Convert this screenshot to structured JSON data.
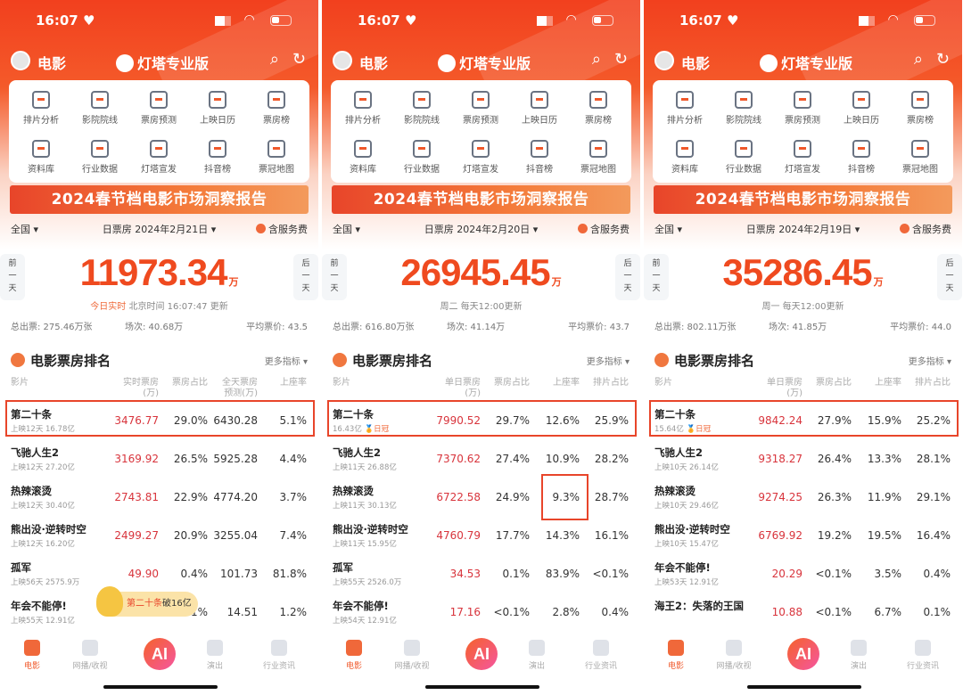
{
  "colors": {
    "accent": "#ef4a1f",
    "value_red": "#d8343c",
    "highlight": "#e8452a"
  },
  "common": {
    "time": "16:07",
    "header_title": "电影",
    "app_name": "灯塔专业版",
    "menu": [
      "排片分析",
      "影院院线",
      "票房预测",
      "上映日历",
      "票房榜",
      "资料库",
      "行业数据",
      "灯塔宣发",
      "抖音榜",
      "票冠地图"
    ],
    "banner": "2024春节档电影市场洞察报告",
    "region": "全国 ▾",
    "service_fee": "含服务费",
    "prev": [
      "前",
      "一",
      "天"
    ],
    "next": [
      "后",
      "一",
      "天"
    ],
    "unit": "万",
    "section_title": "电影票房排名",
    "more": "更多指标 ▾",
    "tabs": [
      "电影",
      "网播/收视",
      "演出",
      "行业资讯"
    ],
    "ai": "AI"
  },
  "phones": [
    {
      "date": "日票房 2024年2月21日 ▾",
      "total": "11973.34",
      "live": "今日实时",
      "subtext": "北京时间 16:07:47 更新",
      "stats": [
        "总出票: 275.46万张",
        "场次: 40.68万",
        "平均票价: 43.5"
      ],
      "columns": [
        "影片",
        "实时票房\n(万)",
        "票房占比",
        "全天票房\n预测(万)",
        "上座率"
      ],
      "rows": [
        {
          "name": "第二十条",
          "sub": "上映12天 16.78亿",
          "values": [
            "3476.77",
            "29.0%",
            "6430.28",
            "5.1%"
          ]
        },
        {
          "name": "飞驰人生2",
          "sub": "上映12天 27.20亿",
          "values": [
            "3169.92",
            "26.5%",
            "5925.28",
            "4.4%"
          ]
        },
        {
          "name": "热辣滚烫",
          "sub": "上映12天 30.40亿",
          "values": [
            "2743.81",
            "22.9%",
            "4774.20",
            "3.7%"
          ]
        },
        {
          "name": "熊出没·逆转时空",
          "sub": "上映12天 16.20亿",
          "values": [
            "2499.27",
            "20.9%",
            "3255.04",
            "7.4%"
          ]
        },
        {
          "name": "孤军",
          "sub": "上映56天 2575.9万",
          "values": [
            "49.90",
            "0.4%",
            "101.73",
            "81.8%"
          ]
        },
        {
          "name": "年会不能停!",
          "sub": "上映55天 12.91亿",
          "values": [
            "",
            "1%",
            "14.51",
            "1.2%"
          ]
        }
      ],
      "toast": {
        "movie": "第二十条",
        "text": "破16亿"
      }
    },
    {
      "date": "日票房 2024年2月20日 ▾",
      "total": "26945.45",
      "live": "",
      "subtext": "周二 每天12:00更新",
      "stats": [
        "总出票: 616.80万张",
        "场次: 41.14万",
        "平均票价: 43.7"
      ],
      "columns": [
        "影片",
        "单日票房\n(万)",
        "票房占比",
        "上座率",
        "排片占比"
      ],
      "rows": [
        {
          "name": "第二十条",
          "sub": "16.43亿",
          "badge": "日冠",
          "values": [
            "7990.52",
            "29.7%",
            "12.6%",
            "25.9%"
          ]
        },
        {
          "name": "飞驰人生2",
          "sub": "上映11天 26.88亿",
          "values": [
            "7370.62",
            "27.4%",
            "10.9%",
            "28.2%"
          ]
        },
        {
          "name": "热辣滚烫",
          "sub": "上映11天 30.13亿",
          "values": [
            "6722.58",
            "24.9%",
            "9.3%",
            "28.7%"
          ]
        },
        {
          "name": "熊出没·逆转时空",
          "sub": "上映11天 15.95亿",
          "values": [
            "4760.79",
            "17.7%",
            "14.3%",
            "16.1%"
          ]
        },
        {
          "name": "孤军",
          "sub": "上映55天 2526.0万",
          "values": [
            "34.53",
            "0.1%",
            "83.9%",
            "<0.1%"
          ]
        },
        {
          "name": "年会不能停!",
          "sub": "上映54天 12.91亿",
          "values": [
            "17.16",
            "<0.1%",
            "2.8%",
            "0.4%"
          ]
        }
      ]
    },
    {
      "date": "日票房 2024年2月19日 ▾",
      "total": "35286.45",
      "live": "",
      "subtext": "周一 每天12:00更新",
      "stats": [
        "总出票: 802.11万张",
        "场次: 41.85万",
        "平均票价: 44.0"
      ],
      "columns": [
        "影片",
        "单日票房\n(万)",
        "票房占比",
        "上座率",
        "排片占比"
      ],
      "rows": [
        {
          "name": "第二十条",
          "sub": "15.64亿",
          "badge": "日冠",
          "values": [
            "9842.24",
            "27.9%",
            "15.9%",
            "25.2%"
          ]
        },
        {
          "name": "飞驰人生2",
          "sub": "上映10天 26.14亿",
          "values": [
            "9318.27",
            "26.4%",
            "13.3%",
            "28.1%"
          ]
        },
        {
          "name": "热辣滚烫",
          "sub": "上映10天 29.46亿",
          "values": [
            "9274.25",
            "26.3%",
            "11.9%",
            "29.1%"
          ]
        },
        {
          "name": "熊出没·逆转时空",
          "sub": "上映10天 15.47亿",
          "values": [
            "6769.92",
            "19.2%",
            "19.5%",
            "16.4%"
          ]
        },
        {
          "name": "年会不能停!",
          "sub": "上映53天 12.91亿",
          "values": [
            "20.29",
            "<0.1%",
            "3.5%",
            "0.4%"
          ]
        },
        {
          "name": "海王2：失落的王国",
          "sub": "",
          "values": [
            "10.88",
            "<0.1%",
            "6.7%",
            "0.1%"
          ]
        }
      ]
    }
  ]
}
